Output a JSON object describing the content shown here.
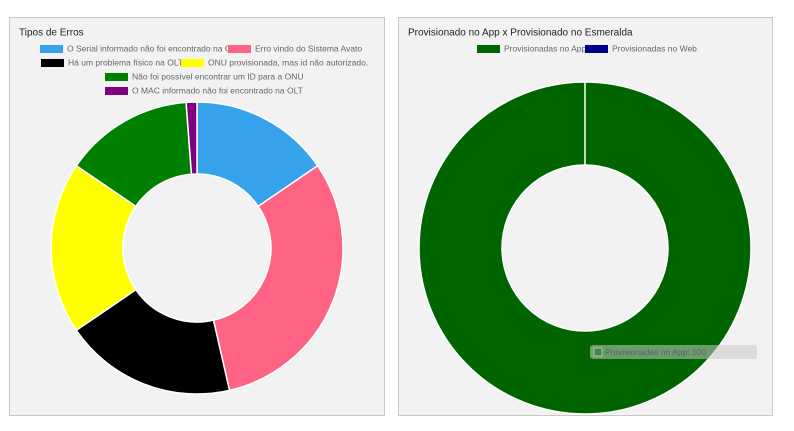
{
  "chart_data": [
    {
      "type": "doughnut",
      "title": "Tipos de Erros",
      "categories": [
        "O Serial informado não foi encontrado na OLT",
        "Erro vindo do Sistema Avato",
        "Há um problema físico na OLT",
        "ONU provisionada, mas id não autorizado.",
        "Não foi possível encontrar um ID para a ONU",
        "O MAC informado não foi encontrado na OLT"
      ],
      "values": [
        13,
        26,
        16,
        16,
        12,
        1
      ],
      "colors": [
        "#36a2eb",
        "#ff6384",
        "#000000",
        "#ffff00",
        "#008000",
        "#800080"
      ]
    },
    {
      "type": "doughnut",
      "title": "Provisionado no App x Provisionado no Esmeralda",
      "categories": [
        "Provisionadas no App",
        "Provisionadas no Web"
      ],
      "values": [
        100,
        0
      ],
      "colors": [
        "#006400",
        "#00008b"
      ],
      "tooltip": "Provisionadas no App: 100"
    }
  ]
}
